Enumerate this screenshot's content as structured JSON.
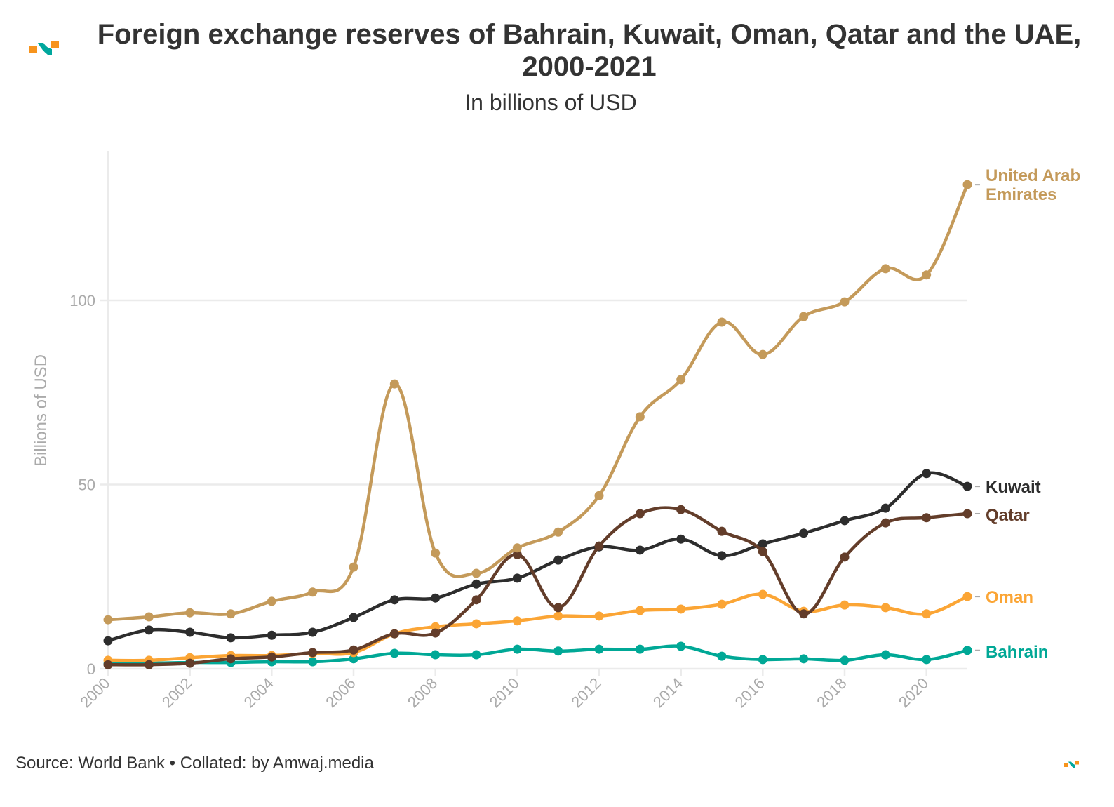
{
  "header": {
    "title": "Foreign exchange reserves of Bahrain, Kuwait, Oman, Qatar and the UAE, 2000-2021",
    "subtitle": "In billions of USD",
    "logo_icon": "amwaj-logo-icon"
  },
  "footer": {
    "source": "Source: World Bank • Collated: by Amwaj.media",
    "logo_icon": "amwaj-logo-icon"
  },
  "brand_colors": {
    "orange": "#f7941d",
    "teal": "#00a79d"
  },
  "chart_data": {
    "type": "line",
    "title": "Foreign exchange reserves of Bahrain, Kuwait, Oman, Qatar and the UAE, 2000-2021",
    "subtitle": "In billions of USD",
    "xlabel": "",
    "ylabel": "Billions of USD",
    "x": [
      2000,
      2001,
      2002,
      2003,
      2004,
      2005,
      2006,
      2007,
      2008,
      2009,
      2010,
      2011,
      2012,
      2013,
      2014,
      2015,
      2016,
      2017,
      2018,
      2019,
      2020,
      2021
    ],
    "x_ticks": [
      "2000",
      "2002",
      "2004",
      "2006",
      "2008",
      "2010",
      "2012",
      "2014",
      "2016",
      "2018",
      "2020"
    ],
    "y_ticks": [
      "0",
      "50",
      "100"
    ],
    "ylim": [
      0,
      140
    ],
    "xlim": [
      2000,
      2021
    ],
    "grid": "horizontal",
    "legend": "direct-labels-right",
    "series": [
      {
        "name": "United Arab Emirates",
        "label_lines": [
          "United Arab",
          "Emirates"
        ],
        "color": "#c49a5a",
        "values": [
          13.3,
          14.1,
          15.2,
          14.9,
          18.3,
          20.8,
          27.6,
          77.3,
          31.4,
          25.9,
          32.8,
          37.1,
          47.0,
          68.4,
          78.5,
          94.1,
          85.3,
          95.6,
          99.6,
          108.6,
          106.9,
          131.4
        ]
      },
      {
        "name": "Kuwait",
        "label_lines": [
          "Kuwait"
        ],
        "color": "#2d2d2d",
        "values": [
          7.6,
          10.5,
          9.9,
          8.4,
          9.1,
          9.9,
          13.9,
          18.7,
          19.2,
          23.0,
          24.6,
          29.5,
          33.1,
          32.2,
          35.2,
          30.7,
          33.9,
          36.8,
          40.2,
          43.6,
          53.0,
          49.5
        ]
      },
      {
        "name": "Qatar",
        "label_lines": [
          "Qatar"
        ],
        "color": "#633d2a",
        "values": [
          1.1,
          1.1,
          1.5,
          2.7,
          3.2,
          4.4,
          5.1,
          9.5,
          9.7,
          18.7,
          31.0,
          16.6,
          33.3,
          42.1,
          43.2,
          37.3,
          31.8,
          14.9,
          30.3,
          39.6,
          41.0,
          42.1
        ]
      },
      {
        "name": "Oman",
        "label_lines": [
          "Oman"
        ],
        "color": "#fba535",
        "values": [
          2.3,
          2.3,
          3.0,
          3.6,
          3.6,
          4.2,
          4.4,
          9.5,
          11.4,
          12.2,
          13.0,
          14.3,
          14.3,
          15.8,
          16.2,
          17.5,
          20.2,
          15.6,
          17.3,
          16.6,
          14.9,
          19.6
        ]
      },
      {
        "name": "Bahrain",
        "label_lines": [
          "Bahrain"
        ],
        "color": "#00a896",
        "values": [
          1.3,
          1.5,
          1.7,
          1.7,
          1.9,
          1.9,
          2.7,
          4.2,
          3.8,
          3.8,
          5.3,
          4.8,
          5.3,
          5.3,
          6.1,
          3.4,
          2.5,
          2.7,
          2.3,
          3.8,
          2.5,
          5.0
        ]
      }
    ]
  }
}
